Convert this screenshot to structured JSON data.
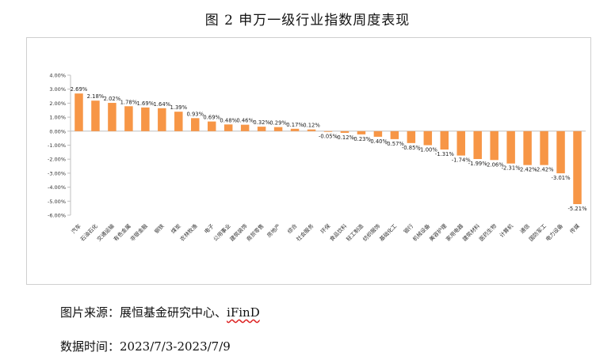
{
  "title": "图 2  申万一级行业指数周度表现",
  "source_label": "图片来源：",
  "source_text": "展恒基金研究中心、",
  "source_name": "iFinD",
  "date_label": "数据时间：",
  "date_text": "2023/7/3-2023/7/9",
  "colors": {
    "bar": "#f79646",
    "axis": "#bfbfbf"
  },
  "chart_data": {
    "type": "bar",
    "title": "",
    "xlabel": "",
    "ylabel": "",
    "ylim": [
      -6,
      4
    ],
    "yticks": [
      "4.00%",
      "3.00%",
      "2.00%",
      "1.00%",
      "0.00%",
      "-1.00%",
      "-2.00%",
      "-3.00%",
      "-4.00%",
      "-5.00%",
      "-6.00%"
    ],
    "grid": false,
    "legend": "none",
    "categories": [
      "汽车",
      "石油石化",
      "交通运输",
      "有色金属",
      "非银金融",
      "钢铁",
      "煤炭",
      "农林牧渔",
      "电子",
      "公用事业",
      "建筑装饰",
      "商贸零售",
      "房地产",
      "综合",
      "社会服务",
      "环保",
      "食品饮料",
      "轻工制造",
      "纺织服饰",
      "基础化工",
      "银行",
      "机械设备",
      "美容护理",
      "家用电器",
      "建筑材料",
      "医药生物",
      "计算机",
      "通信",
      "国防军工",
      "电力设备",
      "传媒"
    ],
    "values": [
      2.69,
      2.18,
      2.02,
      1.78,
      1.69,
      1.64,
      1.39,
      0.93,
      0.69,
      0.48,
      0.46,
      0.32,
      0.29,
      0.17,
      0.12,
      -0.05,
      -0.12,
      -0.23,
      -0.4,
      -0.57,
      -0.85,
      -1.0,
      -1.31,
      -1.74,
      -1.99,
      -2.06,
      -2.31,
      -2.42,
      -2.42,
      -3.01,
      -5.21
    ],
    "labels": [
      "2.69%",
      "2.18%",
      "2.02%",
      "1.78%",
      "1.69%",
      "1.64%",
      "1.39%",
      "0.93%",
      "0.69%",
      "0.48%",
      "0.46%",
      "0.32%",
      "0.29%",
      "0.17%",
      "0.12%",
      "-0.05%",
      "-0.12%",
      "-0.23%",
      "-0.40%",
      "-0.57%",
      "-0.85%",
      "-1.00%",
      "-1.31%",
      "-1.74%",
      "-1.99%",
      "-2.06%",
      "-2.31%",
      "-2.42%",
      "-2.42%",
      "-3.01%",
      "-5.21%"
    ]
  }
}
